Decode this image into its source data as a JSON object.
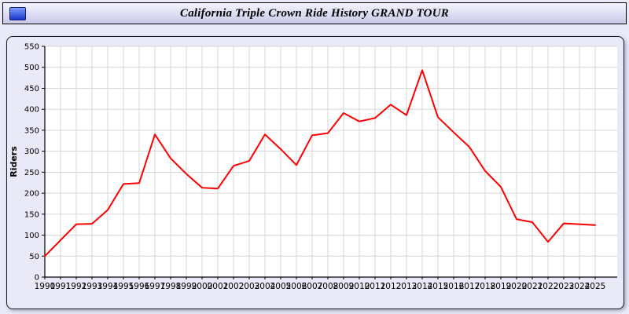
{
  "header": {
    "title": "California Triple Crown Ride History GRAND TOUR"
  },
  "chart_data": {
    "type": "line",
    "title": "California Triple Crown Ride History GRAND TOUR",
    "xlabel": "",
    "ylabel": "Riders",
    "x": [
      1990,
      1991,
      1992,
      1993,
      1994,
      1995,
      1996,
      1997,
      1998,
      1999,
      2000,
      2001,
      2002,
      2003,
      2004,
      2005,
      2006,
      2007,
      2008,
      2009,
      2010,
      2011,
      2012,
      2013,
      2014,
      2015,
      2016,
      2017,
      2018,
      2019,
      2020,
      2021,
      2022,
      2023,
      2024,
      2025
    ],
    "series": [
      {
        "name": "Riders",
        "color": "#ff0000",
        "values": [
          50,
          88,
          126,
          127,
          160,
          222,
          224,
          340,
          283,
          246,
          213,
          211,
          265,
          277,
          340,
          305,
          267,
          338,
          343,
          391,
          371,
          379,
          411,
          386,
          493,
          381,
          345,
          310,
          253,
          215,
          138,
          131,
          84,
          128,
          126,
          124
        ]
      }
    ],
    "ylim": [
      0,
      550
    ],
    "yticks": [
      0,
      50,
      100,
      150,
      200,
      250,
      300,
      350,
      400,
      450,
      500,
      550
    ],
    "grid": true,
    "legend": "none",
    "plot_bg": "#ffffff",
    "grid_color": "#d6d6d6",
    "axis_color": "#000000",
    "panel_bg": "#e9e9f7"
  }
}
